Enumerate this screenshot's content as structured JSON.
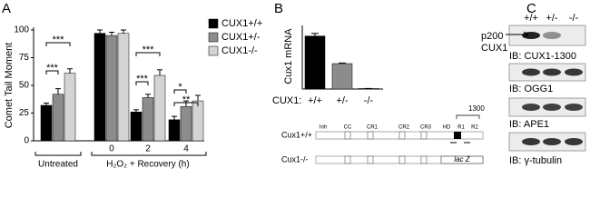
{
  "chart_data": [
    {
      "type": "bar",
      "panel": "A",
      "ylabel": "Comet Tail Moment",
      "categories": [
        null,
        "0",
        "2",
        "4"
      ],
      "group_labels": [
        "Untreated",
        "H₂O₂ + Recovery (h)"
      ],
      "series": [
        {
          "name": "CUX1+/+",
          "color": "#000000",
          "values": [
            32,
            97,
            26,
            19
          ],
          "errors": [
            2,
            3,
            2,
            3
          ]
        },
        {
          "name": "CUX1+/-",
          "color": "#8c8c8c",
          "values": [
            42,
            95,
            39,
            31
          ],
          "errors": [
            5,
            3,
            3,
            5
          ]
        },
        {
          "name": "CUX1-/-",
          "color": "#d4d4d4",
          "values": [
            61,
            97,
            59,
            36
          ],
          "errors": [
            4,
            3,
            5,
            5
          ]
        }
      ],
      "ylim": [
        0,
        100
      ],
      "yticks": [
        0,
        25,
        50,
        75,
        100
      ],
      "annotations": [
        "***",
        "***",
        "***",
        "***",
        "*",
        "**"
      ]
    },
    {
      "type": "bar",
      "panel": "B",
      "ylabel": "Cux1 mRNA",
      "xlabel": "CUX1:",
      "categories": [
        "+/+",
        "+/-",
        "-/-"
      ],
      "series": [
        {
          "colors": [
            "#000000",
            "#8c8c8c",
            "#d4d4d4"
          ],
          "values": [
            1.0,
            0.48,
            0.01
          ],
          "errors": [
            0.05,
            0.01,
            0
          ]
        }
      ],
      "ylim": [
        0,
        1.2
      ]
    }
  ],
  "diagram": {
    "rows": [
      "Cux1+/+",
      "Cux1-/-"
    ],
    "segments": [
      "Inh",
      "CC",
      "CR1",
      "CR2",
      "CR3",
      "HD",
      "R1",
      "R2"
    ],
    "marker": "1300",
    "insert": "lac Z"
  },
  "blots": {
    "panel": "C",
    "lanes": [
      "+/+",
      "+/-",
      "-/-"
    ],
    "band_label": [
      "p200",
      "CUX1"
    ],
    "labels": [
      "IB: CUX1-1300",
      "IB: OGG1",
      "IB: APE1",
      "IB: γ-tubulin"
    ]
  }
}
